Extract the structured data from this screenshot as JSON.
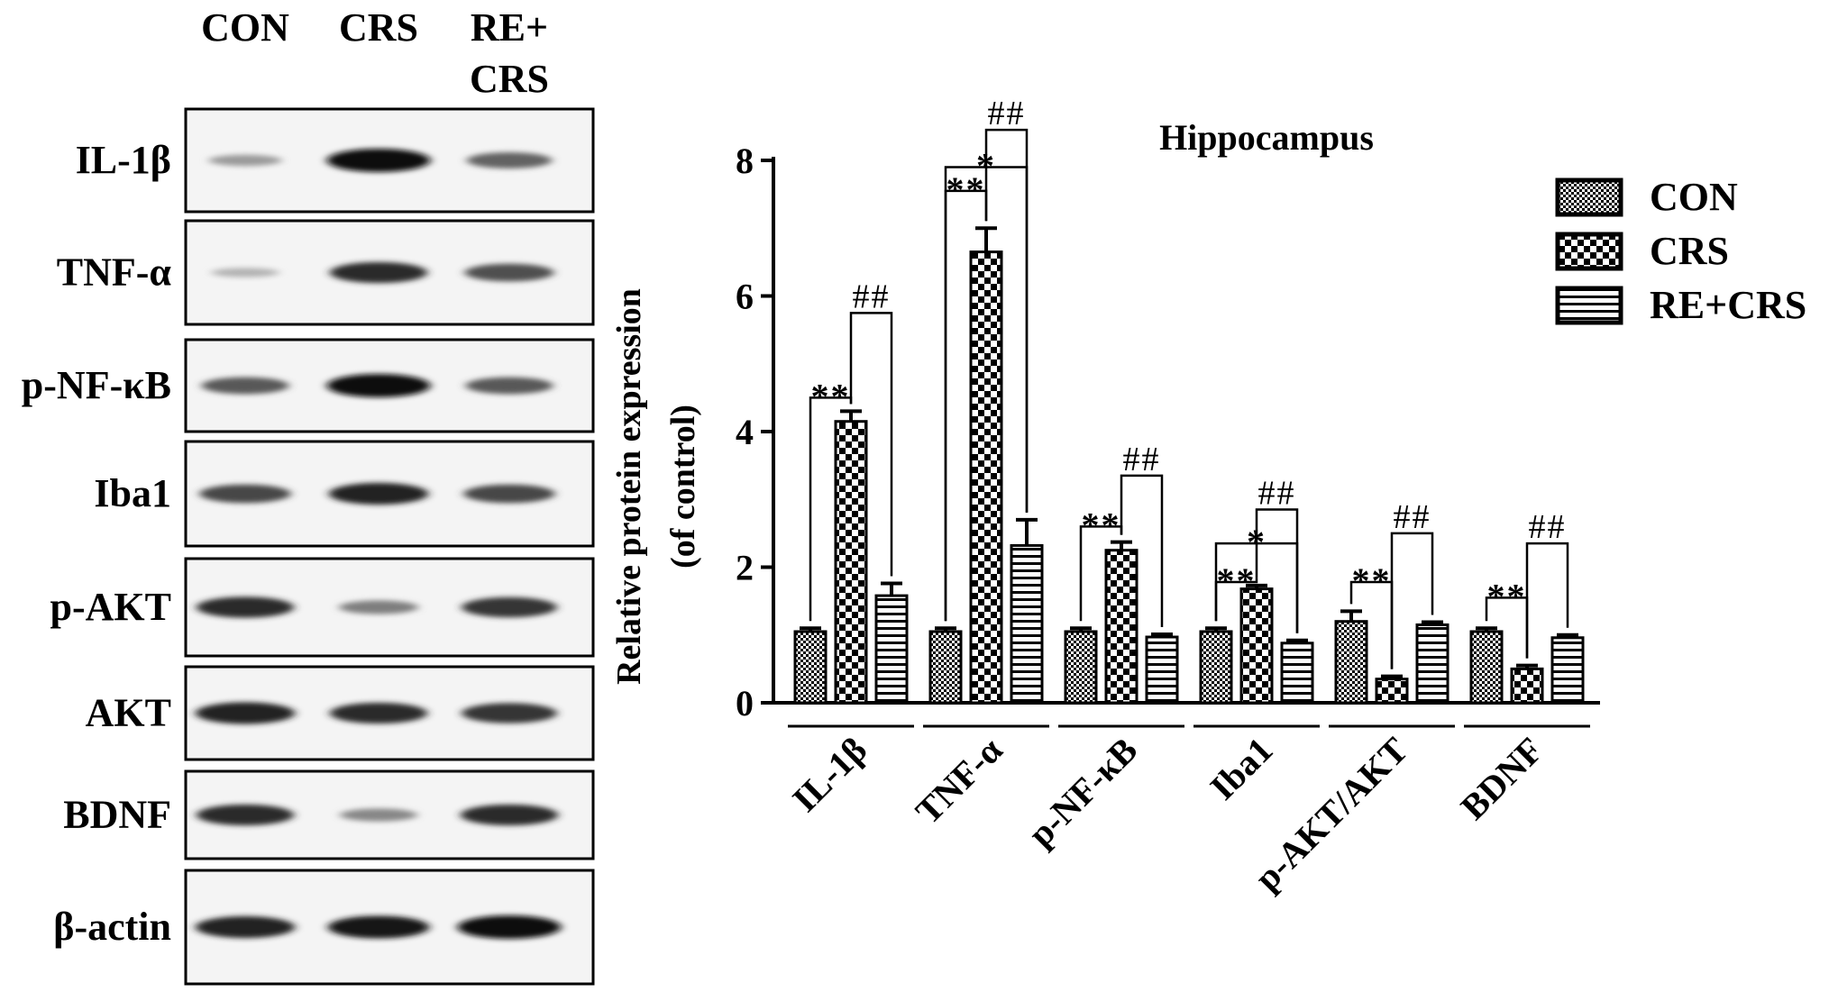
{
  "blot": {
    "lanes": [
      [
        "CON"
      ],
      [
        "CRS"
      ],
      [
        "RE+",
        "CRS"
      ]
    ],
    "rows": [
      {
        "label": "IL-1β",
        "intensity": [
          0.25,
          1.0,
          0.55
        ]
      },
      {
        "label": "TNF-α",
        "intensity": [
          0.12,
          0.85,
          0.65
        ]
      },
      {
        "label": "p-NF-κB",
        "intensity": [
          0.6,
          1.0,
          0.6
        ]
      },
      {
        "label": "Iba1",
        "intensity": [
          0.7,
          0.9,
          0.7
        ]
      },
      {
        "label": "p-AKT",
        "intensity": [
          0.85,
          0.4,
          0.8
        ]
      },
      {
        "label": "AKT",
        "intensity": [
          0.9,
          0.85,
          0.8
        ]
      },
      {
        "label": "BDNF",
        "intensity": [
          0.85,
          0.35,
          0.85
        ]
      },
      {
        "label": "β-actin",
        "intensity": [
          0.9,
          0.95,
          1.0
        ]
      }
    ]
  },
  "chart_data": {
    "type": "bar",
    "title": "Hippocampus",
    "ylabel": [
      "Relative protein expression",
      "(of control)"
    ],
    "xlabel": "",
    "ylim": [
      0,
      8
    ],
    "yticks": [
      0,
      2,
      4,
      6,
      8
    ],
    "categories": [
      "IL-1β",
      "TNF-α",
      "p-NF-κB",
      "Iba1",
      "p-AKT/AKT",
      "BDNF"
    ],
    "series": [
      {
        "name": "CON",
        "pattern": "checker-fine",
        "values": [
          1.05,
          1.05,
          1.05,
          1.05,
          1.2,
          1.05
        ],
        "errors": [
          0.05,
          0.05,
          0.05,
          0.05,
          0.15,
          0.05
        ]
      },
      {
        "name": "CRS",
        "pattern": "checker-coarse",
        "values": [
          4.15,
          6.65,
          2.25,
          1.68,
          0.35,
          0.5
        ],
        "errors": [
          0.15,
          0.35,
          0.12,
          0.05,
          0.04,
          0.05
        ]
      },
      {
        "name": "RE+CRS",
        "pattern": "horizontal-lines",
        "values": [
          1.58,
          2.32,
          0.97,
          0.88,
          1.15,
          0.96
        ],
        "errors": [
          0.18,
          0.38,
          0.04,
          0.04,
          0.04,
          0.04
        ]
      }
    ],
    "significance": [
      {
        "category": "IL-1β",
        "from": 0,
        "to": 1,
        "label": "**",
        "level": 4.5
      },
      {
        "category": "IL-1β",
        "from": 1,
        "to": 2,
        "label": "##",
        "level": 5.75
      },
      {
        "category": "TNF-α",
        "from": 0,
        "to": 1,
        "label": "**",
        "level": 7.55
      },
      {
        "category": "TNF-α",
        "from": 0,
        "to": 2,
        "label": "*",
        "level": 7.9
      },
      {
        "category": "TNF-α",
        "from": 1,
        "to": 2,
        "label": "##",
        "level": 8.45
      },
      {
        "category": "p-NF-κB",
        "from": 0,
        "to": 1,
        "label": "**",
        "level": 2.6
      },
      {
        "category": "p-NF-κB",
        "from": 1,
        "to": 2,
        "label": "##",
        "level": 3.35
      },
      {
        "category": "Iba1",
        "from": 0,
        "to": 1,
        "label": "**",
        "level": 1.78
      },
      {
        "category": "Iba1",
        "from": 0,
        "to": 2,
        "label": "*",
        "level": 2.35
      },
      {
        "category": "Iba1",
        "from": 1,
        "to": 2,
        "label": "##",
        "level": 2.85
      },
      {
        "category": "p-AKT/AKT",
        "from": 0,
        "to": 1,
        "label": "**",
        "level": 1.78
      },
      {
        "category": "p-AKT/AKT",
        "from": 1,
        "to": 2,
        "label": "##",
        "level": 2.5
      },
      {
        "category": "BDNF",
        "from": 0,
        "to": 1,
        "label": "**",
        "level": 1.55
      },
      {
        "category": "BDNF",
        "from": 1,
        "to": 2,
        "label": "##",
        "level": 2.35
      }
    ],
    "legend_position": "top-right"
  }
}
